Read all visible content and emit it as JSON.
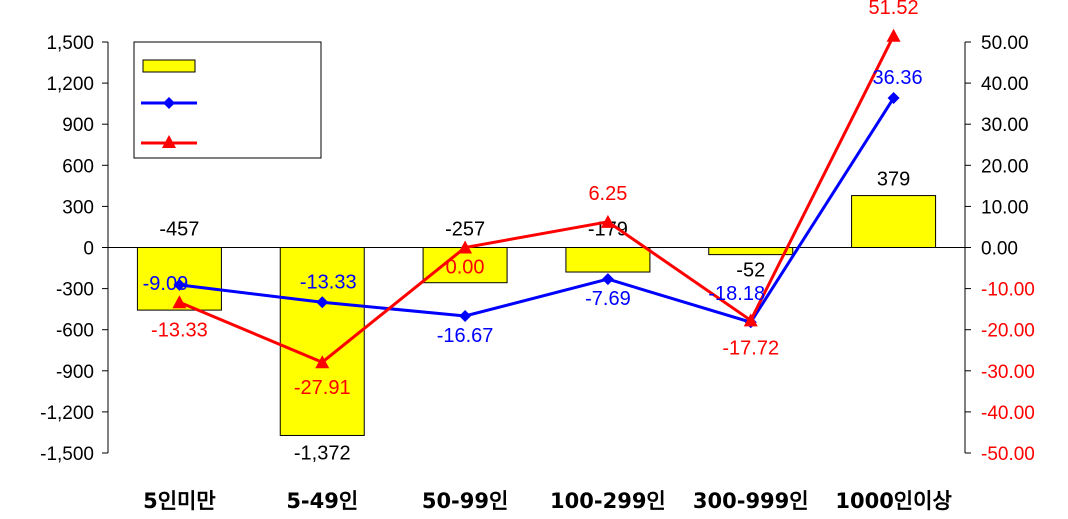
{
  "chart_data": {
    "type": "bar",
    "categories": [
      "5인미만",
      "5-49인",
      "50-99인",
      "100-299인",
      "300-999인",
      "1000인이상"
    ],
    "series": [
      {
        "kind": "bar",
        "axis": "left",
        "color": "#ffff00",
        "values": [
          -457,
          -1372,
          -257,
          -179,
          -52,
          379
        ],
        "labels": [
          "-457",
          "-1,372",
          "-257",
          "-179",
          "-52",
          "379"
        ]
      },
      {
        "kind": "line",
        "axis": "right",
        "color": "#0000ff",
        "marker": "diamond",
        "values": [
          -9.09,
          -13.33,
          -16.67,
          -7.69,
          -18.18,
          36.36
        ],
        "labels": [
          "-9.09",
          "-13.33",
          "-16.67",
          "-7.69",
          "-18.18",
          "36.36"
        ]
      },
      {
        "kind": "line",
        "axis": "right",
        "color": "#ff0000",
        "marker": "triangle",
        "values": [
          -13.33,
          -27.91,
          0.0,
          6.25,
          -17.72,
          51.52
        ],
        "labels": [
          "-13.33",
          "-27.91",
          "0.00",
          "6.25",
          "-17.72",
          "51.52"
        ]
      }
    ],
    "y_left": {
      "ylim": [
        -1500,
        1500
      ],
      "ticks": [
        "1,500",
        "1,200",
        "900",
        "600",
        "300",
        "0",
        "-300",
        "-600",
        "-900",
        "-1,200",
        "-1,500"
      ]
    },
    "y_right": {
      "ylim": [
        -50,
        50
      ],
      "ticks": [
        "50.00",
        "40.00",
        "30.00",
        "20.00",
        "10.00",
        "0.00",
        "-10.00",
        "-20.00",
        "-30.00",
        "-40.00",
        "-50.00"
      ],
      "positive_color": "#000000",
      "negative_color": "#ff0000"
    },
    "legend": {
      "position": "top-left",
      "entries": [
        "",
        "",
        ""
      ]
    },
    "grid": false,
    "title": "",
    "xlabel": "",
    "ylabel": ""
  }
}
